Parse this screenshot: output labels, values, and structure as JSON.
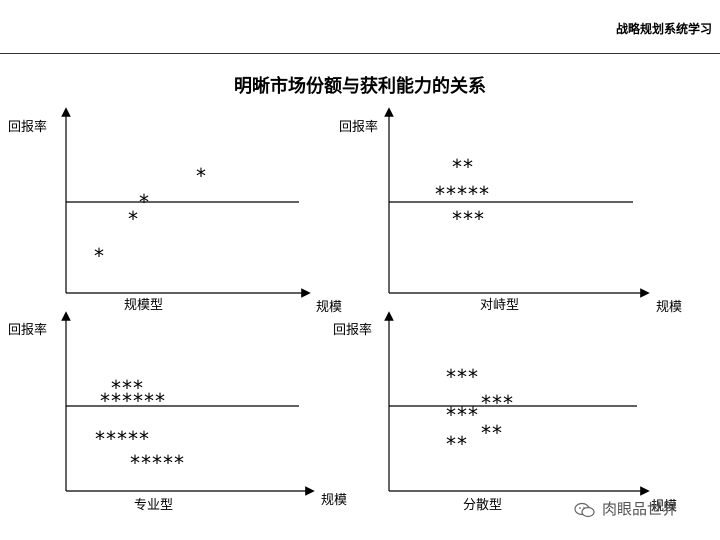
{
  "header": {
    "text": "战略规划系统学习"
  },
  "title": "明晰市场份额与获利能力的关系",
  "quadrants": [
    {
      "name": "规模型",
      "y_label": "回报率",
      "x_label": "规模",
      "stars": [
        "*",
        "*",
        "*",
        "*"
      ]
    },
    {
      "name": "对峙型",
      "y_label": "回报率",
      "x_label": "规模",
      "stars": [
        "**",
        "*****",
        "***"
      ]
    },
    {
      "name": "专业型",
      "y_label": "回报率",
      "x_label": "规模",
      "stars": [
        "***",
        "******",
        "*****",
        "*****"
      ]
    },
    {
      "name": "分散型",
      "y_label": "回报率",
      "x_label": "规模",
      "stars": [
        "***",
        "***",
        "***",
        "**",
        "**"
      ]
    }
  ],
  "watermark": {
    "text": "肉眼品世界",
    "icon": "wechat-icon"
  }
}
